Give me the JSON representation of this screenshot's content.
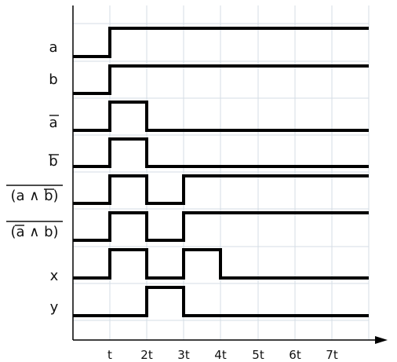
{
  "diagram": {
    "signals": [
      {
        "label": "a",
        "transitions": [
          "t"
        ]
      },
      {
        "label": "b",
        "transitions": [
          "t"
        ]
      },
      {
        "label": "a",
        "transitions": [
          "t",
          "2t"
        ]
      },
      {
        "label": "b",
        "transitions": [
          "t",
          "2t"
        ]
      },
      {
        "label": "(a ∧ b)",
        "transitions": [
          "t",
          "2t",
          "3t"
        ]
      },
      {
        "label": "(a ∧ b)",
        "transitions": [
          "t",
          "2t",
          "3t"
        ]
      },
      {
        "label": "x",
        "transitions": [
          "t",
          "2t",
          "3t",
          "4t"
        ]
      },
      {
        "label": "y",
        "transitions": [
          "2t",
          "3t"
        ]
      }
    ],
    "time_ticks": [
      "t",
      "2t",
      "3t",
      "4t",
      "5t",
      "6t",
      "7t"
    ]
  }
}
